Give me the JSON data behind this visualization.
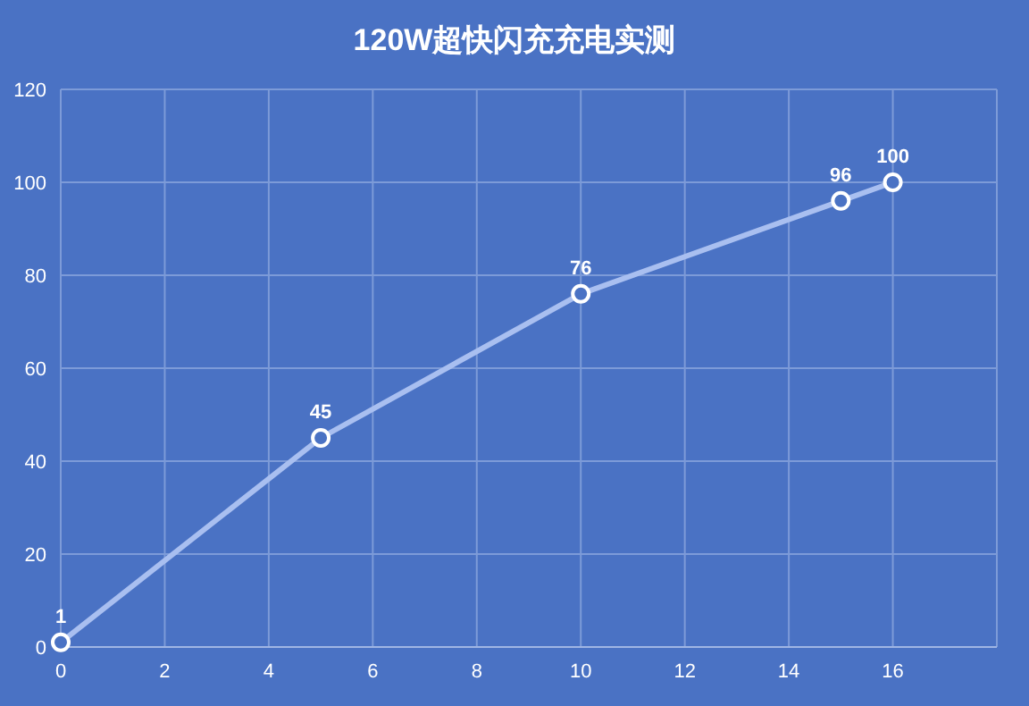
{
  "chart_data": {
    "type": "line",
    "title": "120W超快闪充充电实测",
    "x": [
      0,
      5,
      10,
      15,
      16
    ],
    "series": [
      {
        "color": "#a9bff0",
        "values": [
          1,
          45,
          76,
          96,
          100
        ]
      }
    ],
    "xlim": [
      0,
      18
    ],
    "xticks": [
      0,
      2,
      4,
      6,
      8,
      10,
      12,
      14,
      16,
      {
        "value": 18,
        "label": null
      }
    ],
    "ylim": [
      0,
      120
    ],
    "yticks": [
      0,
      20,
      40,
      60,
      80,
      100,
      120
    ],
    "grid": true,
    "marker": "circle",
    "line_style": "solid",
    "data_labels": true
  }
}
